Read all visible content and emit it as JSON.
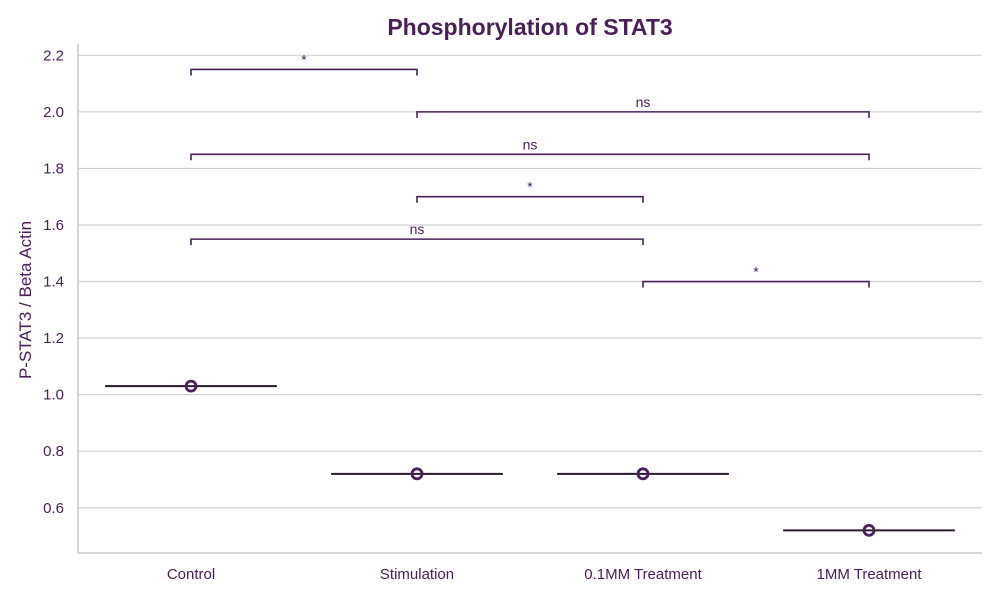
{
  "chart_data": {
    "type": "scatter",
    "title": "Phosphorylation of STAT3",
    "xlabel": "",
    "ylabel": "P-STAT3 / Beta Actin",
    "categories": [
      "Control",
      "Stimulation",
      "0.1MM Treatment",
      "1MM Treatment"
    ],
    "values": [
      1.03,
      0.72,
      0.72,
      0.52
    ],
    "ylim": [
      0.44,
      2.24
    ],
    "yticks": [
      0.6,
      0.8,
      1.0,
      1.2,
      1.4,
      1.6,
      1.8,
      2.0,
      2.2
    ],
    "ytick_labels": [
      "0.6",
      "0.8",
      "1.0",
      "1.2",
      "1.4",
      "1.6",
      "1.8",
      "2.0",
      "2.2"
    ],
    "grid": "horizontal",
    "legend": "none",
    "significance": [
      {
        "from": 0,
        "to": 1,
        "y": 2.15,
        "label": "*"
      },
      {
        "from": 1,
        "to": 3,
        "y": 2.0,
        "label": "ns"
      },
      {
        "from": 0,
        "to": 3,
        "y": 1.85,
        "label": "ns"
      },
      {
        "from": 1,
        "to": 2,
        "y": 1.7,
        "label": "*"
      },
      {
        "from": 0,
        "to": 2,
        "y": 1.55,
        "label": "ns"
      },
      {
        "from": 2,
        "to": 3,
        "y": 1.4,
        "label": "*"
      }
    ],
    "colors": {
      "text": "#4a2058",
      "points": "#4a2058",
      "median_line": "#2a1a2e",
      "grid": "#d0d0d0"
    }
  }
}
